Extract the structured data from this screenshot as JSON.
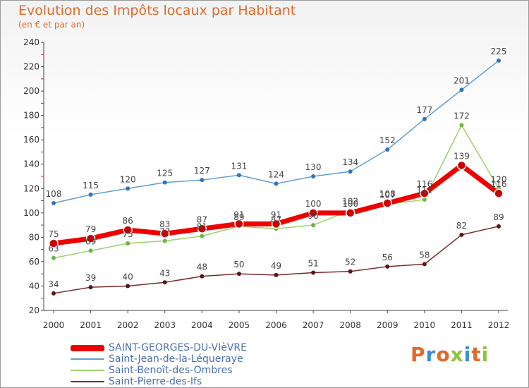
{
  "header": {
    "title": "Evolution des Impôts locaux par Habitant",
    "subtitle": "(en € et par an)"
  },
  "brand": {
    "text": "Proxiti",
    "colors": [
      "#e06a2b",
      "#3a8fd0",
      "#e06a2b",
      "#8bc43f",
      "#3a8fd0",
      "#e06a2b",
      "#8bc43f"
    ]
  },
  "chart_data": {
    "type": "line",
    "title": "Evolution des Impôts locaux par Habitant",
    "subtitle": "(en € et par an)",
    "xlabel": "",
    "ylabel": "",
    "categories": [
      "2000",
      "2001",
      "2002",
      "2003",
      "2004",
      "2005",
      "2006",
      "2007",
      "2008",
      "2009",
      "2010",
      "2011",
      "2012"
    ],
    "ylim": [
      20,
      240
    ],
    "yticks": [
      20,
      40,
      60,
      80,
      100,
      120,
      140,
      160,
      180,
      200,
      220,
      240
    ],
    "grid": false,
    "legend_position": "bottom-left",
    "series": [
      {
        "name": "Saint-Jean-de-la-Léqueraye",
        "color": "#5f9fd6",
        "marker": "#2f75bb",
        "width": 1.5,
        "emphasis": false,
        "values": [
          108,
          115,
          120,
          125,
          127,
          131,
          124,
          130,
          134,
          152,
          177,
          201,
          225
        ]
      },
      {
        "name": "Saint-Benoît-des-Ombres",
        "color": "#99d36b",
        "marker": "#6fb53a",
        "width": 1.5,
        "emphasis": false,
        "values": [
          63,
          69,
          75,
          77,
          81,
          89,
          87,
          90,
          102,
          107,
          111,
          172,
          120
        ]
      },
      {
        "name": "Saint-Pierre-des-Ifs",
        "color": "#7b2a2a",
        "marker": "#5a1515",
        "width": 1.5,
        "emphasis": false,
        "values": [
          34,
          39,
          40,
          43,
          48,
          50,
          49,
          51,
          52,
          56,
          58,
          82,
          89
        ]
      },
      {
        "name": "SAINT-GEORGES-DU-VIèVRE",
        "color": "#ee0000",
        "marker": "#cc0000",
        "width": 7,
        "emphasis": true,
        "values": [
          75,
          79,
          86,
          83,
          87,
          91,
          91,
          100,
          100,
          108,
          116,
          139,
          116
        ]
      }
    ]
  },
  "legend": {
    "items": [
      {
        "label": "SAINT-GEORGES-DU-VIèVRE",
        "color": "#ee0000",
        "thickness": "thick"
      },
      {
        "label": "Saint-Jean-de-la-Léqueraye",
        "color": "#5f9fd6",
        "thickness": "thin"
      },
      {
        "label": "Saint-Benoît-des-Ombres",
        "color": "#99d36b",
        "thickness": "thin"
      },
      {
        "label": "Saint-Pierre-des-Ifs",
        "color": "#7b2a2a",
        "thickness": "thin"
      }
    ]
  }
}
